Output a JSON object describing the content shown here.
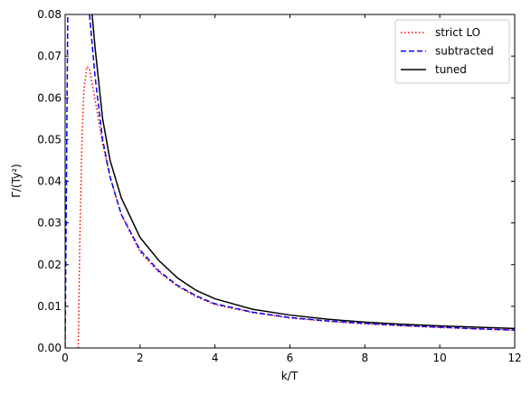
{
  "chart_data": {
    "type": "line",
    "xlabel": "k/T",
    "ylabel": "Γ/(Ty²)",
    "xlim": [
      0,
      12
    ],
    "ylim": [
      0,
      0.08
    ],
    "xticks": [
      0,
      2,
      4,
      6,
      8,
      10,
      12
    ],
    "yticks": [
      {
        "value": 0,
        "label": "0.00"
      },
      {
        "value": 0.01,
        "label": "0.01"
      },
      {
        "value": 0.02,
        "label": "0.02"
      },
      {
        "value": 0.03,
        "label": "0.03"
      },
      {
        "value": 0.04,
        "label": "0.04"
      },
      {
        "value": 0.05,
        "label": "0.05"
      },
      {
        "value": 0.06,
        "label": "0.06"
      },
      {
        "value": 0.07,
        "label": "0.07"
      },
      {
        "value": 0.08,
        "label": "0.08"
      }
    ],
    "legend": "upper right",
    "series": [
      {
        "name": "strict LO",
        "color": "#ff0000",
        "dash": "dotted",
        "x": [
          0.35,
          0.4,
          0.45,
          0.5,
          0.58,
          0.65,
          0.75,
          0.85,
          1,
          1.2,
          1.5,
          2,
          2.5,
          3,
          3.5,
          4,
          5,
          6,
          7,
          8,
          9,
          10,
          11,
          12
        ],
        "values": [
          0,
          0.03,
          0.05,
          0.062,
          0.0675,
          0.067,
          0.062,
          0.057,
          0.049,
          0.041,
          0.032,
          0.023,
          0.0182,
          0.0148,
          0.0123,
          0.0104,
          0.0085,
          0.0072,
          0.0064,
          0.0058,
          0.0053,
          0.0049,
          0.0046,
          0.0043
        ]
      },
      {
        "name": "subtracted",
        "color": "#0000ff",
        "dash": "dashed",
        "x": [
          0,
          0.07,
          0.35,
          0.65,
          0.8,
          1,
          1.2,
          1.5,
          2,
          2.5,
          3,
          3.5,
          4,
          5,
          6,
          7,
          8,
          9,
          10,
          11,
          12
        ],
        "values": [
          0,
          0.08,
          null,
          0.08,
          0.065,
          0.05,
          0.041,
          0.032,
          0.0235,
          0.0185,
          0.015,
          0.0125,
          0.0106,
          0.0086,
          0.0073,
          0.0065,
          0.0059,
          0.0054,
          0.005,
          0.0046,
          0.0043
        ]
      },
      {
        "name": "tuned",
        "color": "#000000",
        "dash": "solid",
        "x": [
          0.72,
          0.8,
          1,
          1.2,
          1.5,
          2,
          2.5,
          3,
          3.5,
          4,
          5,
          6,
          7,
          8,
          9,
          10,
          11,
          12
        ],
        "values": [
          0.08,
          0.072,
          0.055,
          0.045,
          0.036,
          0.0265,
          0.021,
          0.0168,
          0.0138,
          0.0118,
          0.0093,
          0.0079,
          0.0069,
          0.0062,
          0.0057,
          0.0053,
          0.005,
          0.0047
        ]
      }
    ]
  }
}
